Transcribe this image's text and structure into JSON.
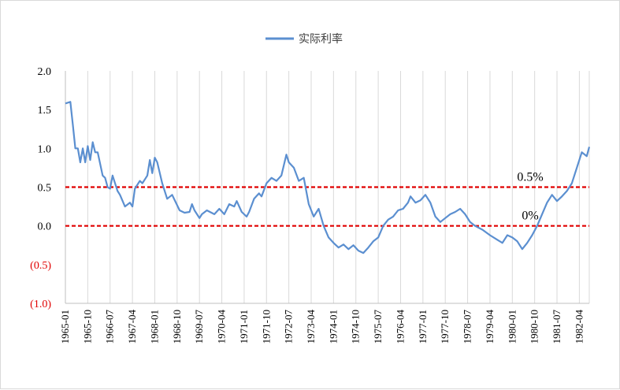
{
  "chart_data": {
    "type": "line",
    "title": "",
    "xlabel": "",
    "ylabel": "",
    "ylim": [
      -1.0,
      2.0
    ],
    "y_ticks": [
      {
        "value": 2.0,
        "label": "2.0"
      },
      {
        "value": 1.5,
        "label": "1.5"
      },
      {
        "value": 1.0,
        "label": "1.0"
      },
      {
        "value": 0.5,
        "label": "0.5"
      },
      {
        "value": 0.0,
        "label": "0.0"
      },
      {
        "value": -0.5,
        "label": "(0.5)"
      },
      {
        "value": -1.0,
        "label": "(1.0)"
      }
    ],
    "x_tick_labels": [
      "1965-01",
      "1965-10",
      "1966-07",
      "1967-04",
      "1968-01",
      "1968-10",
      "1969-07",
      "1970-04",
      "1971-01",
      "1971-10",
      "1972-07",
      "1973-04",
      "1974-01",
      "1974-10",
      "1975-07",
      "1976-04",
      "1977-01",
      "1977-10",
      "1978-07",
      "1979-04",
      "1980-01",
      "1980-10",
      "1981-07",
      "1982-04"
    ],
    "x_range": [
      "1965-01",
      "1982-08"
    ],
    "grid": {
      "vertical": true,
      "horizontal": false
    },
    "legend": {
      "position": "top-center"
    },
    "colors": {
      "series": "#5b8fd0",
      "reference": "#e00000",
      "negative_tick": "#e00000",
      "grid": "#d9d9d9"
    },
    "series": [
      {
        "name": "实际利率",
        "x": [
          "1965-01",
          "1965-03",
          "1965-04",
          "1965-05",
          "1965-06",
          "1965-07",
          "1965-08",
          "1965-09",
          "1965-10",
          "1965-11",
          "1965-12",
          "1966-01",
          "1966-02",
          "1966-04",
          "1966-05",
          "1966-06",
          "1966-07",
          "1966-08",
          "1966-10",
          "1966-11",
          "1967-01",
          "1967-03",
          "1967-04",
          "1967-05",
          "1967-07",
          "1967-08",
          "1967-09",
          "1967-10",
          "1967-11",
          "1967-12",
          "1968-01",
          "1968-02",
          "1968-04",
          "1968-06",
          "1968-08",
          "1968-11",
          "1969-01",
          "1969-03",
          "1969-04",
          "1969-05",
          "1969-07",
          "1969-08",
          "1969-10",
          "1970-01",
          "1970-03",
          "1970-05",
          "1970-07",
          "1970-09",
          "1970-10",
          "1970-12",
          "1971-02",
          "1971-03",
          "1971-05",
          "1971-07",
          "1971-08",
          "1971-10",
          "1971-12",
          "1972-02",
          "1972-04",
          "1972-06",
          "1972-07",
          "1972-09",
          "1972-11",
          "1973-01",
          "1973-03",
          "1973-05",
          "1973-07",
          "1973-09",
          "1973-11",
          "1974-01",
          "1974-03",
          "1974-05",
          "1974-07",
          "1974-09",
          "1974-11",
          "1975-01",
          "1975-03",
          "1975-05",
          "1975-07",
          "1975-09",
          "1975-11",
          "1976-01",
          "1976-03",
          "1976-05",
          "1976-07",
          "1976-08",
          "1976-10",
          "1976-12",
          "1977-02",
          "1977-04",
          "1977-06",
          "1977-08",
          "1977-10",
          "1977-12",
          "1978-02",
          "1978-04",
          "1978-06",
          "1978-08",
          "1978-10",
          "1979-01",
          "1979-04",
          "1979-07",
          "1979-09",
          "1979-11",
          "1980-01",
          "1980-03",
          "1980-05",
          "1980-07",
          "1980-09",
          "1980-11",
          "1981-01",
          "1981-03",
          "1981-05",
          "1981-07",
          "1981-09",
          "1981-11",
          "1982-01",
          "1982-03",
          "1982-05",
          "1982-07",
          "1982-08"
        ],
        "values": [
          1.58,
          1.6,
          1.3,
          1.0,
          1.0,
          0.82,
          1.0,
          0.82,
          1.03,
          0.85,
          1.08,
          0.95,
          0.95,
          0.65,
          0.62,
          0.5,
          0.48,
          0.65,
          0.45,
          0.4,
          0.25,
          0.3,
          0.25,
          0.48,
          0.58,
          0.55,
          0.6,
          0.65,
          0.85,
          0.68,
          0.88,
          0.82,
          0.55,
          0.35,
          0.4,
          0.2,
          0.17,
          0.18,
          0.28,
          0.2,
          0.1,
          0.15,
          0.2,
          0.15,
          0.22,
          0.15,
          0.28,
          0.25,
          0.32,
          0.18,
          0.12,
          0.18,
          0.35,
          0.42,
          0.38,
          0.55,
          0.62,
          0.58,
          0.65,
          0.92,
          0.82,
          0.75,
          0.58,
          0.62,
          0.28,
          0.12,
          0.22,
          0.0,
          -0.15,
          -0.22,
          -0.28,
          -0.24,
          -0.3,
          -0.25,
          -0.32,
          -0.35,
          -0.28,
          -0.2,
          -0.15,
          0.0,
          0.08,
          0.12,
          0.2,
          0.22,
          0.3,
          0.38,
          0.3,
          0.33,
          0.4,
          0.3,
          0.12,
          0.05,
          0.1,
          0.15,
          0.18,
          0.22,
          0.15,
          0.05,
          0.0,
          -0.05,
          -0.12,
          -0.18,
          -0.22,
          -0.12,
          -0.15,
          -0.2,
          -0.3,
          -0.22,
          -0.12,
          0.0,
          0.15,
          0.3,
          0.4,
          0.32,
          0.38,
          0.45,
          0.55,
          0.75,
          0.95,
          0.9,
          1.02
        ]
      }
    ],
    "reference_lines": [
      {
        "value": 0.5,
        "label": "0.5%"
      },
      {
        "value": 0.0,
        "label": "0%"
      }
    ]
  }
}
